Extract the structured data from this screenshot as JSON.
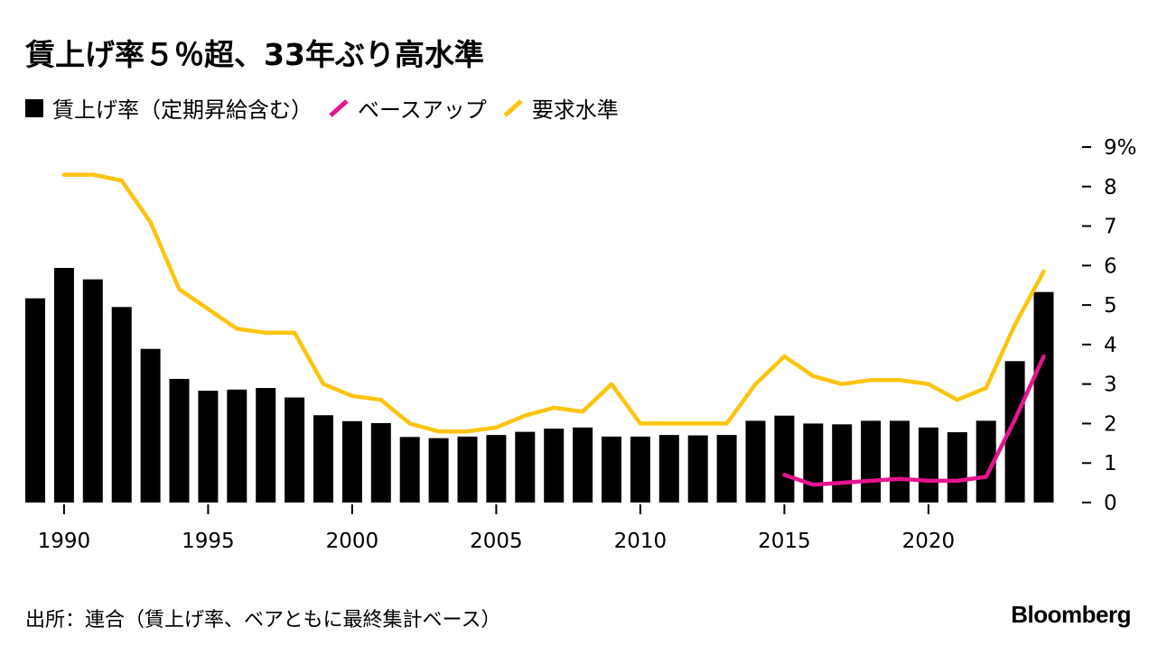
{
  "title": "賃上げ率５％超、33年ぶり高水準",
  "legend": {
    "wage": "賃上げ率（定期昇給含む）",
    "base": "ベースアップ",
    "demand": "要求水準"
  },
  "source": "出所：連合（賃上げ率、ベアともに最終集計ベース）",
  "brand": "Bloomberg",
  "colors": {
    "bar": "#000000",
    "base": "#e5158f",
    "demand": "#fcc40e"
  },
  "chart_data": {
    "type": "bar",
    "x": [
      1989,
      1990,
      1991,
      1992,
      1993,
      1994,
      1995,
      1996,
      1997,
      1998,
      1999,
      2000,
      2001,
      2002,
      2003,
      2004,
      2005,
      2006,
      2007,
      2008,
      2009,
      2010,
      2011,
      2012,
      2013,
      2014,
      2015,
      2016,
      2017,
      2018,
      2019,
      2020,
      2021,
      2022,
      2023,
      2024
    ],
    "x_ticks": [
      1990,
      1995,
      2000,
      2005,
      2010,
      2015,
      2020
    ],
    "y_ticks": [
      "0",
      "1",
      "2",
      "3",
      "4",
      "5",
      "6",
      "7",
      "8",
      "9%"
    ],
    "ylim": [
      0,
      9
    ],
    "y_axis_position": "right",
    "series": [
      {
        "name": "賃上げ率（定期昇給含む）",
        "kind": "bar",
        "values": [
          5.17,
          5.94,
          5.65,
          4.95,
          3.89,
          3.13,
          2.83,
          2.86,
          2.9,
          2.66,
          2.21,
          2.06,
          2.01,
          1.66,
          1.63,
          1.67,
          1.71,
          1.79,
          1.87,
          1.9,
          1.67,
          1.67,
          1.71,
          1.7,
          1.71,
          2.07,
          2.2,
          2.0,
          1.98,
          2.07,
          2.07,
          1.9,
          1.78,
          2.07,
          3.58,
          5.33
        ]
      },
      {
        "name": "ベースアップ",
        "kind": "line",
        "x": [
          2015,
          2016,
          2017,
          2018,
          2019,
          2020,
          2021,
          2022,
          2023,
          2024
        ],
        "values": [
          0.7,
          0.45,
          0.5,
          0.55,
          0.6,
          0.55,
          0.55,
          0.65,
          2.1,
          3.7
        ]
      },
      {
        "name": "要求水準",
        "kind": "line",
        "x": [
          1990,
          1991,
          1992,
          1993,
          1994,
          1995,
          1996,
          1997,
          1998,
          1999,
          2000,
          2001,
          2002,
          2003,
          2004,
          2005,
          2006,
          2007,
          2008,
          2009,
          2010,
          2011,
          2012,
          2013,
          2014,
          2015,
          2016,
          2017,
          2018,
          2019,
          2020,
          2021,
          2022,
          2023,
          2024
        ],
        "values": [
          8.3,
          8.3,
          8.15,
          7.1,
          5.4,
          4.9,
          4.4,
          4.3,
          4.3,
          3.0,
          2.7,
          2.6,
          2.0,
          1.8,
          1.8,
          1.9,
          2.2,
          2.4,
          2.3,
          3.0,
          2.0,
          2.0,
          2.0,
          2.0,
          3.0,
          3.7,
          3.2,
          3.0,
          3.1,
          3.1,
          3.0,
          2.6,
          2.9,
          4.5,
          5.85
        ]
      }
    ]
  }
}
